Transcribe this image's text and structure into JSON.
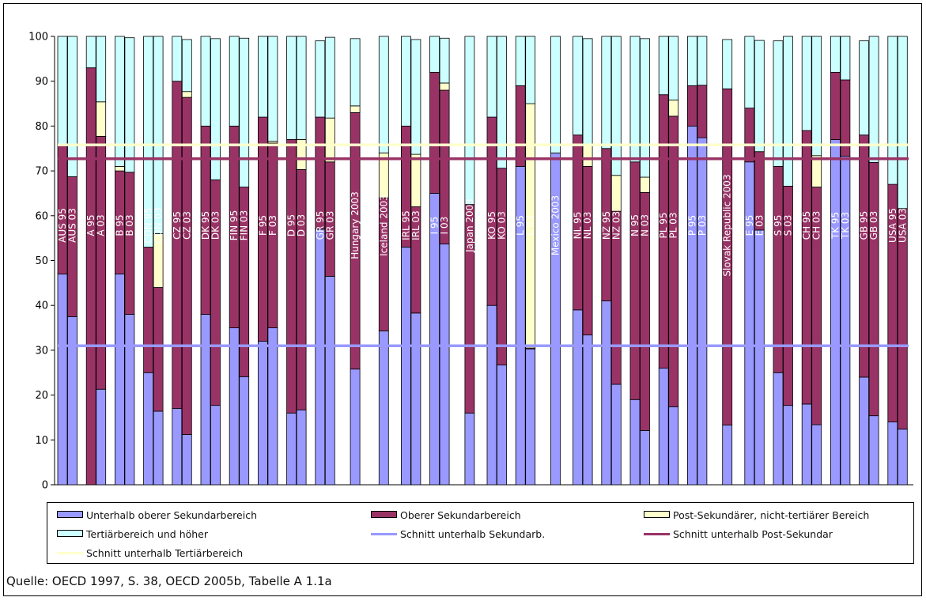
{
  "chart_data": {
    "type": "bar",
    "stacked": true,
    "ylim": [
      0,
      100
    ],
    "yticks": [
      "0",
      "10",
      "20",
      "30",
      "40",
      "50",
      "60",
      "70",
      "80",
      "90",
      "100"
    ],
    "grid": false,
    "series_keys": [
      "unter",
      "sek",
      "post",
      "tert"
    ],
    "series": [
      {
        "key": "unter",
        "name": "Unterhalb oberer Sekundarbereich",
        "color": "#9999ff"
      },
      {
        "key": "sek",
        "name": "Oberer Sekundarbereich",
        "color": "#993366"
      },
      {
        "key": "post",
        "name": "Post-Sekundärer, nicht-tertiärer Bereich",
        "color": "#ffffcc"
      },
      {
        "key": "tert",
        "name": "Tertiärbereich und höher",
        "color": "#ccffff"
      }
    ],
    "reference_lines": [
      {
        "key": "avg_unter",
        "name": "Schnitt unterhalb Sekundarb.",
        "value": 31,
        "color": "#9999ff"
      },
      {
        "key": "avg_post",
        "name": "Schnitt unterhalb Post-Sekundar",
        "value": 72.7,
        "color": "#993366"
      },
      {
        "key": "avg_tert",
        "name": "Schnitt unterhalb Tertiärbereich",
        "value": 75.8,
        "color": "#ffffcc"
      }
    ],
    "groups": [
      {
        "bars": [
          {
            "label": "AUS 95",
            "values": [
              47,
              29,
              0,
              24
            ]
          },
          {
            "label": "AUS 03",
            "values": [
              37.5,
              31.2,
              0,
              31.3
            ]
          }
        ]
      },
      {
        "bars": [
          {
            "label": "A 95",
            "values": [
              0,
              93,
              0,
              7
            ]
          },
          {
            "label": "A 03",
            "values": [
              21.3,
              56.4,
              7.7,
              14.6
            ]
          }
        ]
      },
      {
        "bars": [
          {
            "label": "B 95",
            "values": [
              47,
              23,
              1,
              29
            ]
          },
          {
            "label": "B 03",
            "values": [
              38,
              31.7,
              0,
              30
            ]
          }
        ]
      },
      {
        "bars": [
          {
            "label": "CDN 95",
            "values": [
              25,
              28,
              0,
              47
            ]
          },
          {
            "label": "CDN 03",
            "values": [
              16.4,
              27.6,
              12,
              44
            ]
          }
        ]
      },
      {
        "bars": [
          {
            "label": "CZ 95",
            "values": [
              17,
              73,
              0,
              10
            ]
          },
          {
            "label": "CZ 03",
            "values": [
              11.2,
              75.2,
              1.3,
              11.6
            ]
          }
        ]
      },
      {
        "bars": [
          {
            "label": "DK 95",
            "values": [
              38,
              42,
              0,
              20
            ]
          },
          {
            "label": "DK 03",
            "values": [
              17.7,
              50.3,
              0,
              31.5
            ]
          }
        ]
      },
      {
        "bars": [
          {
            "label": "FIN 95",
            "values": [
              35,
              45,
              0,
              20
            ]
          },
          {
            "label": "FIN 03",
            "values": [
              24.1,
              42.3,
              0,
              33.2
            ]
          }
        ]
      },
      {
        "bars": [
          {
            "label": "F 95",
            "values": [
              32,
              50,
              0,
              18
            ]
          },
          {
            "label": "F 03",
            "values": [
              35,
              41.2,
              0.4,
              23.4
            ]
          }
        ]
      },
      {
        "bars": [
          {
            "label": "D 95",
            "values": [
              16,
              61,
              0,
              23
            ]
          },
          {
            "label": "D 03",
            "values": [
              16.7,
              53.6,
              6.7,
              23
            ]
          }
        ]
      },
      {
        "bars": [
          {
            "label": "GR 95",
            "values": [
              57,
              25,
              0,
              17
            ]
          },
          {
            "label": "GR 03",
            "values": [
              46.5,
              25.5,
              9.8,
              18
            ]
          }
        ]
      },
      {
        "bars": [
          {
            "label": "Hungary 2003",
            "values": [
              25.8,
              57.2,
              1.5,
              15
            ]
          }
        ]
      },
      {
        "bars": [
          {
            "label": "Iceland 2003",
            "values": [
              34.3,
              29.7,
              10,
              26
            ]
          }
        ]
      },
      {
        "bars": [
          {
            "label": "IRL 95",
            "values": [
              53,
              27,
              0,
              20
            ]
          },
          {
            "label": "IRL 03",
            "values": [
              38.3,
              23.7,
              11.7,
              25.6
            ]
          }
        ]
      },
      {
        "bars": [
          {
            "label": "I 95",
            "values": [
              65,
              27,
              0,
              8
            ]
          },
          {
            "label": "I 03",
            "values": [
              53.7,
              34.3,
              1.6,
              10
            ]
          }
        ]
      },
      {
        "bars": [
          {
            "label": "Japan 2003",
            "values": [
              16,
              46.5,
              0,
              37.5
            ]
          }
        ]
      },
      {
        "bars": [
          {
            "label": "KO 95",
            "values": [
              40,
              42,
              0,
              18
            ]
          },
          {
            "label": "KO 03",
            "values": [
              26.7,
              43.9,
              0,
              29.4
            ]
          }
        ]
      },
      {
        "bars": [
          {
            "label": "L 95",
            "values": [
              71,
              18,
              0,
              11
            ]
          },
          {
            "label": "L 03",
            "values": [
              30.3,
              0.2,
              54.5,
              15
            ]
          }
        ]
      },
      {
        "bars": [
          {
            "label": "Mexico 2003",
            "values": [
              74,
              0,
              0,
              26
            ]
          }
        ]
      },
      {
        "bars": [
          {
            "label": "NL 95",
            "values": [
              39,
              39,
              0,
              22
            ]
          },
          {
            "label": "NL 03",
            "values": [
              33.4,
              37.6,
              4.6,
              23.9
            ]
          }
        ]
      },
      {
        "bars": [
          {
            "label": "NZ 95",
            "values": [
              41,
              34,
              0,
              25
            ]
          },
          {
            "label": "NZ 03",
            "values": [
              22.4,
              38.6,
              8,
              31
            ]
          }
        ]
      },
      {
        "bars": [
          {
            "label": "N 95",
            "values": [
              19,
              53,
              0,
              28
            ]
          },
          {
            "label": "N 03",
            "values": [
              12.1,
              53.1,
              3.4,
              30.9
            ]
          }
        ]
      },
      {
        "bars": [
          {
            "label": "PL 95",
            "values": [
              26,
              61,
              0,
              13
            ]
          },
          {
            "label": "PL 03",
            "values": [
              17.4,
              64.8,
              3.6,
              14.2
            ]
          }
        ]
      },
      {
        "bars": [
          {
            "label": "P 95",
            "values": [
              80,
              9,
              0,
              11
            ]
          },
          {
            "label": "P 03",
            "values": [
              77.4,
              11.7,
              0,
              10.9
            ]
          }
        ]
      },
      {
        "bars": [
          {
            "label": "Slovak Republic 2003",
            "values": [
              13.3,
              75,
              0,
              11
            ]
          }
        ]
      },
      {
        "bars": [
          {
            "label": "E 95",
            "values": [
              72,
              12,
              0,
              16
            ]
          },
          {
            "label": "E 03",
            "values": [
              56.8,
              17.5,
              0,
              24.8
            ]
          }
        ]
      },
      {
        "bars": [
          {
            "label": "S 95",
            "values": [
              25,
              46,
              0,
              28
            ]
          },
          {
            "label": "S 03",
            "values": [
              17.7,
              48.9,
              0,
              33.4
            ]
          }
        ]
      },
      {
        "bars": [
          {
            "label": "CH 95",
            "values": [
              18,
              61,
              0,
              21
            ]
          },
          {
            "label": "CH 03",
            "values": [
              13.4,
              53,
              7,
              26.6
            ]
          }
        ]
      },
      {
        "bars": [
          {
            "label": "TK 95",
            "values": [
              77,
              15,
              0,
              8
            ]
          },
          {
            "label": "TK 03",
            "values": [
              73.3,
              17,
              0,
              9.7
            ]
          }
        ]
      },
      {
        "bars": [
          {
            "label": "GB 95",
            "values": [
              24,
              54,
              0,
              21
            ]
          },
          {
            "label": "GB 03",
            "values": [
              15.4,
              56.5,
              0,
              28.1
            ]
          }
        ]
      },
      {
        "bars": [
          {
            "label": "USA 95",
            "values": [
              14,
              53,
              0,
              33
            ]
          },
          {
            "label": "USA 03",
            "values": [
              12.4,
              49.2,
              0,
              38.4
            ]
          }
        ]
      }
    ]
  },
  "legend": {
    "unter": "Unterhalb oberer Sekundarbereich",
    "sek": "Oberer Sekundarbereich",
    "post": "Post-Sekundärer, nicht-tertiärer Bereich",
    "tert": "Tertiärbereich und höher",
    "avg_unter": "Schnitt unterhalb Sekundarb.",
    "avg_post": "Schnitt unterhalb Post-Sekundar",
    "avg_tert": "Schnitt unterhalb Tertiärbereich"
  },
  "source": "Quelle: OECD 1997, S. 38, OECD 2005b, Tabelle A 1.1a"
}
